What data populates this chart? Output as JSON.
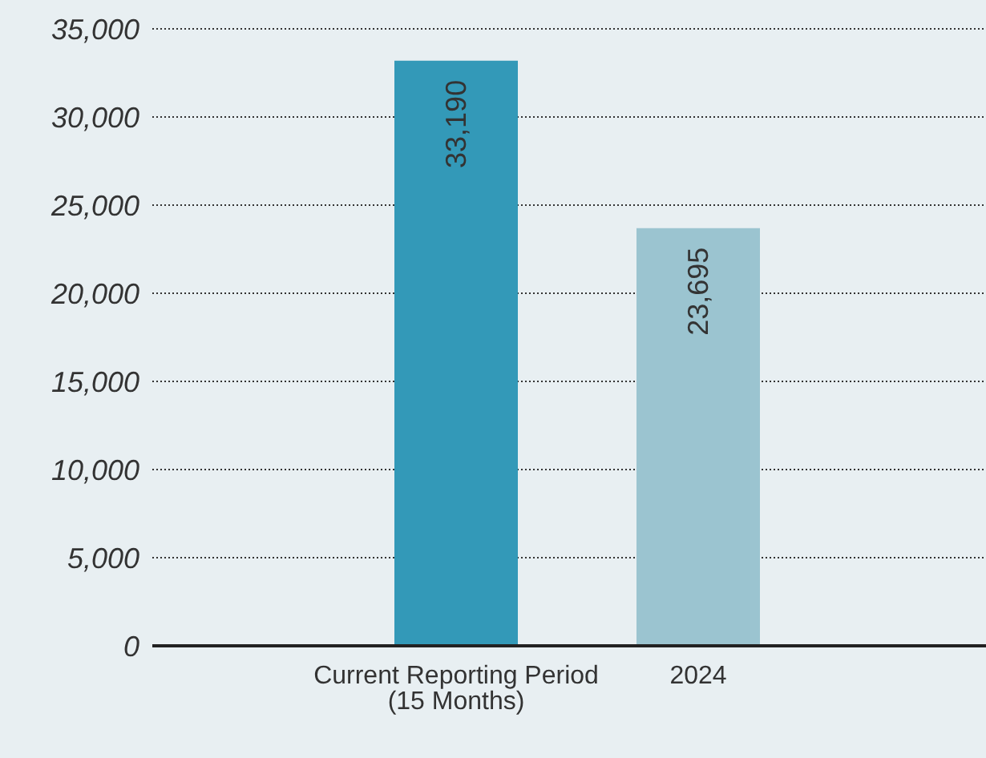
{
  "chart_data": {
    "type": "bar",
    "categories": [
      "Current Reporting Period (15 Months)",
      "2024"
    ],
    "values": [
      33190,
      23695
    ],
    "colors": [
      "#3399b8",
      "#9bc4d0"
    ],
    "ylim": [
      0,
      35000
    ],
    "yticks": [
      {
        "value": 0,
        "label": "0"
      },
      {
        "value": 5000,
        "label": "5,000"
      },
      {
        "value": 10000,
        "label": "10,000"
      },
      {
        "value": 15000,
        "label": "15,000"
      },
      {
        "value": 20000,
        "label": "20,000"
      },
      {
        "value": 25000,
        "label": "25,000"
      },
      {
        "value": 30000,
        "label": "30,000"
      },
      {
        "value": 35000,
        "label": "35,000"
      }
    ],
    "grid": "y",
    "value_labels": [
      "33,190",
      "23,695"
    ],
    "legend": false
  }
}
